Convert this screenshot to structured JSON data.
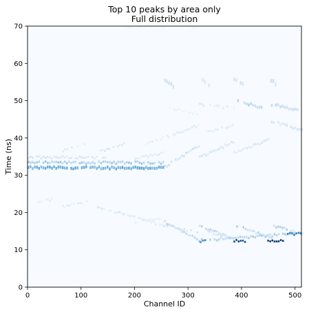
{
  "chart_data": {
    "type": "heatmap",
    "title": "Top 10 peaks by area only",
    "subtitle": "Full distribution",
    "xlabel": "Channel ID",
    "ylabel": "Time (ns)",
    "xlim": [
      0,
      512
    ],
    "ylim": [
      0,
      70
    ],
    "xticks": [
      0,
      100,
      200,
      300,
      400,
      500
    ],
    "yticks": [
      0,
      10,
      20,
      30,
      40,
      50,
      60,
      70
    ],
    "colormap": "Blues",
    "colors": {
      "background": "#f7fbff",
      "light": "#c6dbef",
      "mid": "#6baed6",
      "high": "#2171b5",
      "max": "#08306b"
    },
    "grid": false,
    "legend": "none",
    "bands": [
      {
        "x": [
          0,
          255
        ],
        "y": [
          32,
          32
        ],
        "w": 0.8,
        "i": 0.55,
        "noise": 0.3
      },
      {
        "x": [
          0,
          255
        ],
        "y": [
          33.4,
          33.4
        ],
        "w": 0.6,
        "i": 0.38,
        "noise": 0.35
      },
      {
        "x": [
          0,
          150
        ],
        "y": [
          34.8,
          34.8
        ],
        "w": 0.5,
        "i": 0.22,
        "noise": 0.4
      },
      {
        "x": [
          255,
          320
        ],
        "y": [
          32.3,
          38
        ],
        "w": 0.6,
        "i": 0.25,
        "noise": 0.5
      },
      {
        "x": [
          320,
          385
        ],
        "y": [
          34.8,
          39
        ],
        "w": 0.6,
        "i": 0.2,
        "noise": 0.5
      },
      {
        "x": [
          385,
          450
        ],
        "y": [
          36,
          39.5
        ],
        "w": 0.6,
        "i": 0.18,
        "noise": 0.5
      },
      {
        "x": [
          200,
          255
        ],
        "y": [
          34.5,
          36
        ],
        "w": 0.5,
        "i": 0.18,
        "noise": 0.5
      },
      {
        "x": [
          135,
          180
        ],
        "y": [
          36.5,
          38.5
        ],
        "w": 0.5,
        "i": 0.18,
        "noise": 0.5
      },
      {
        "x": [
          65,
          110
        ],
        "y": [
          36.5,
          38.5
        ],
        "w": 0.5,
        "i": 0.16,
        "noise": 0.5
      },
      {
        "x": [
          220,
          262
        ],
        "y": [
          38.5,
          40.5
        ],
        "w": 0.5,
        "i": 0.14,
        "noise": 0.6
      },
      {
        "x": [
          262,
          320
        ],
        "y": [
          40.5,
          43.5
        ],
        "w": 0.6,
        "i": 0.16,
        "noise": 0.6
      },
      {
        "x": [
          330,
          385
        ],
        "y": [
          41.5,
          43.5
        ],
        "w": 0.6,
        "i": 0.16,
        "noise": 0.6
      },
      {
        "x": [
          455,
          512
        ],
        "y": [
          44.5,
          42
        ],
        "w": 0.7,
        "i": 0.22,
        "noise": 0.4
      },
      {
        "x": [
          388,
          440
        ],
        "y": [
          50,
          48
        ],
        "w": 0.8,
        "i": 0.3,
        "noise": 0.4
      },
      {
        "x": [
          455,
          505
        ],
        "y": [
          49,
          47.5
        ],
        "w": 0.8,
        "i": 0.28,
        "noise": 0.4
      },
      {
        "x": [
          320,
          385
        ],
        "y": [
          49,
          48
        ],
        "w": 0.6,
        "i": 0.16,
        "noise": 0.6
      },
      {
        "x": [
          260,
          320
        ],
        "y": [
          48,
          46.5
        ],
        "w": 0.5,
        "i": 0.12,
        "noise": 0.7
      },
      {
        "x": [
          255,
          275
        ],
        "y": [
          55.5,
          53.5
        ],
        "w": 1.0,
        "i": 0.22,
        "noise": 0.4
      },
      {
        "x": [
          322,
          340
        ],
        "y": [
          56,
          54
        ],
        "w": 1.0,
        "i": 0.22,
        "noise": 0.4
      },
      {
        "x": [
          385,
          403
        ],
        "y": [
          56,
          54
        ],
        "w": 1.0,
        "i": 0.22,
        "noise": 0.4
      },
      {
        "x": [
          450,
          468
        ],
        "y": [
          56,
          54
        ],
        "w": 1.0,
        "i": 0.22,
        "noise": 0.4
      },
      {
        "x": [
          180,
          325
        ],
        "y": [
          69.7,
          69.7
        ],
        "w": 0.3,
        "i": 0.08,
        "noise": 0.8
      },
      {
        "x": [
          20,
          45
        ],
        "y": [
          23,
          23.5
        ],
        "w": 0.5,
        "i": 0.12,
        "noise": 0.6
      },
      {
        "x": [
          65,
          110
        ],
        "y": [
          21.5,
          23
        ],
        "w": 0.5,
        "i": 0.16,
        "noise": 0.6
      },
      {
        "x": [
          130,
          255
        ],
        "y": [
          21.5,
          16.5
        ],
        "w": 0.6,
        "i": 0.18,
        "noise": 0.6
      },
      {
        "x": [
          200,
          250
        ],
        "y": [
          17.5,
          18.5
        ],
        "w": 0.5,
        "i": 0.12,
        "noise": 0.6
      },
      {
        "x": [
          255,
          320
        ],
        "y": [
          17.5,
          12.5
        ],
        "w": 0.6,
        "i": 0.3,
        "noise": 0.5
      },
      {
        "x": [
          260,
          320
        ],
        "y": [
          16.5,
          14.5
        ],
        "w": 0.5,
        "i": 0.22,
        "noise": 0.5
      },
      {
        "x": [
          320,
          390
        ],
        "y": [
          16.5,
          12.5
        ],
        "w": 0.6,
        "i": 0.3,
        "noise": 0.5
      },
      {
        "x": [
          330,
          390
        ],
        "y": [
          15,
          13
        ],
        "w": 0.5,
        "i": 0.22,
        "noise": 0.5
      },
      {
        "x": [
          390,
          455
        ],
        "y": [
          16.5,
          13
        ],
        "w": 0.6,
        "i": 0.32,
        "noise": 0.5
      },
      {
        "x": [
          455,
          512
        ],
        "y": [
          16.5,
          14.5
        ],
        "w": 0.6,
        "i": 0.32,
        "noise": 0.5
      },
      {
        "x": [
          320,
          512
        ],
        "y": [
          12.5,
          14.5
        ],
        "w": 0.6,
        "i": 0.35,
        "noise": 0.4
      },
      {
        "x": [
          322,
          332
        ],
        "y": [
          12.3,
          12.3
        ],
        "w": 0.5,
        "i": 0.65,
        "noise": 0.1
      },
      {
        "x": [
          385,
          408
        ],
        "y": [
          12.4,
          12.4
        ],
        "w": 0.5,
        "i": 0.95,
        "noise": 0.1
      },
      {
        "x": [
          448,
          478
        ],
        "y": [
          12.5,
          12.5
        ],
        "w": 0.5,
        "i": 1.0,
        "noise": 0.05
      },
      {
        "x": [
          485,
          512
        ],
        "y": [
          14.3,
          14.3
        ],
        "w": 0.5,
        "i": 0.75,
        "noise": 0.15
      }
    ]
  }
}
